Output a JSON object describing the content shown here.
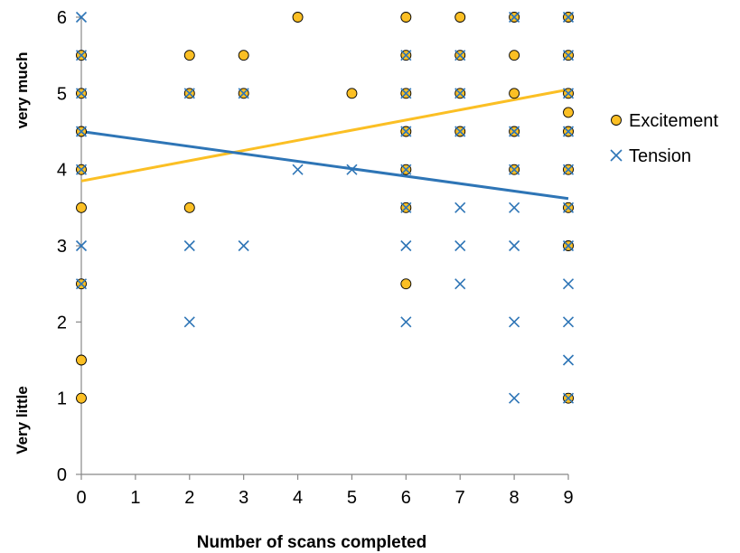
{
  "chart_data": {
    "type": "scatter",
    "xlabel": "Number of scans completed",
    "ylabel_top": "very much",
    "ylabel_bottom": "Very little",
    "xlim": [
      0,
      9
    ],
    "ylim": [
      0,
      6
    ],
    "xticks": [
      "0",
      "1",
      "2",
      "3",
      "4",
      "5",
      "6",
      "7",
      "8",
      "9"
    ],
    "yticks": [
      "0",
      "1",
      "2",
      "3",
      "4",
      "5",
      "6"
    ],
    "grid": false,
    "legend_position": "right",
    "series": [
      {
        "name": "Excitement",
        "marker": "circle",
        "color": "#FBBF24",
        "edge_color": "#000000",
        "points": [
          [
            0,
            5.5
          ],
          [
            0,
            5
          ],
          [
            0,
            4.5
          ],
          [
            0,
            4
          ],
          [
            0,
            3.5
          ],
          [
            0,
            2.5
          ],
          [
            0,
            1.5
          ],
          [
            0,
            1
          ],
          [
            2,
            5.5
          ],
          [
            2,
            5
          ],
          [
            2,
            3.5
          ],
          [
            3,
            5.5
          ],
          [
            3,
            5
          ],
          [
            4,
            6
          ],
          [
            5,
            5
          ],
          [
            6,
            6
          ],
          [
            6,
            5.5
          ],
          [
            6,
            5
          ],
          [
            6,
            4.5
          ],
          [
            6,
            4
          ],
          [
            6,
            3.5
          ],
          [
            6,
            2.5
          ],
          [
            7,
            6
          ],
          [
            7,
            5.5
          ],
          [
            7,
            5
          ],
          [
            7,
            4.5
          ],
          [
            8,
            6
          ],
          [
            8,
            5.5
          ],
          [
            8,
            5
          ],
          [
            8,
            4.5
          ],
          [
            8,
            4
          ],
          [
            9,
            6
          ],
          [
            9,
            5.5
          ],
          [
            9,
            5
          ],
          [
            9,
            4.75
          ],
          [
            9,
            4.5
          ],
          [
            9,
            4
          ],
          [
            9,
            3.5
          ],
          [
            9,
            3
          ],
          [
            9,
            1
          ]
        ],
        "trendline": {
          "x": [
            0,
            9
          ],
          "y": [
            3.85,
            5.05
          ],
          "color": "#FBBF24"
        }
      },
      {
        "name": "Tension",
        "marker": "x",
        "color": "#2E75B6",
        "points": [
          [
            0,
            6
          ],
          [
            0,
            5.5
          ],
          [
            0,
            5
          ],
          [
            0,
            4.5
          ],
          [
            0,
            4
          ],
          [
            0,
            3
          ],
          [
            0,
            2.5
          ],
          [
            2,
            5
          ],
          [
            2,
            3
          ],
          [
            2,
            2
          ],
          [
            3,
            5
          ],
          [
            3,
            3
          ],
          [
            4,
            4
          ],
          [
            5,
            4
          ],
          [
            6,
            5.5
          ],
          [
            6,
            5
          ],
          [
            6,
            4.5
          ],
          [
            6,
            4
          ],
          [
            6,
            3.5
          ],
          [
            6,
            3
          ],
          [
            6,
            2
          ],
          [
            7,
            5.5
          ],
          [
            7,
            5
          ],
          [
            7,
            4.5
          ],
          [
            7,
            3.5
          ],
          [
            7,
            3
          ],
          [
            7,
            2.5
          ],
          [
            8,
            6
          ],
          [
            8,
            4.5
          ],
          [
            8,
            4
          ],
          [
            8,
            3.5
          ],
          [
            8,
            3
          ],
          [
            8,
            2
          ],
          [
            8,
            1
          ],
          [
            9,
            6
          ],
          [
            9,
            5.5
          ],
          [
            9,
            5
          ],
          [
            9,
            4.5
          ],
          [
            9,
            4
          ],
          [
            9,
            3.5
          ],
          [
            9,
            3
          ],
          [
            9,
            2.5
          ],
          [
            9,
            2
          ],
          [
            9,
            1.5
          ],
          [
            9,
            1
          ]
        ],
        "trendline": {
          "x": [
            0,
            9
          ],
          "y": [
            4.5,
            3.62
          ],
          "color": "#2E75B6"
        }
      }
    ]
  }
}
